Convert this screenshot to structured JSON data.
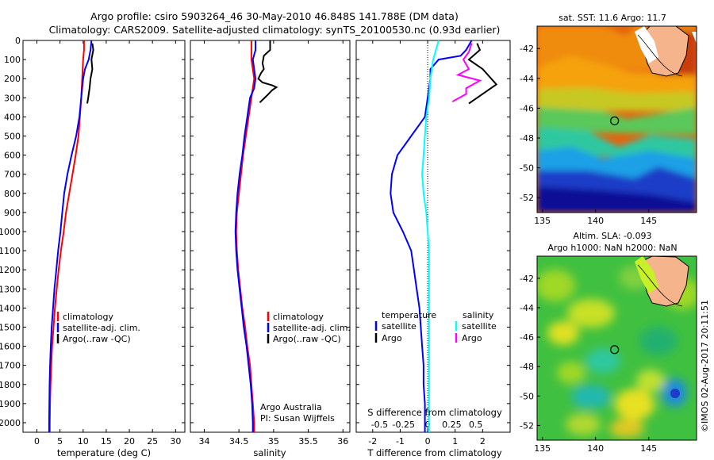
{
  "header": {
    "title_line1": "Argo profile: csiro 5903264_46 30-May-2010 46.848S 141.788E (DM data)",
    "title_line2": "Climatology: CARS2009. Satellite-adjusted climatology: synTS_20100530.nc (0.93d earlier)"
  },
  "colors": {
    "climatology": "#ff0000",
    "satellite": "#0000ff",
    "argo": "#000000",
    "satellite_s": "#00ffff",
    "argo_s": "#ff00ff",
    "zero_line": "#000000"
  },
  "chart_data": [
    {
      "id": "temperature",
      "type": "line",
      "xlabel": "temperature (deg C)",
      "ylabel": "",
      "xlim": [
        -3,
        32
      ],
      "ylim": [
        2050,
        0
      ],
      "xticks": [
        0,
        5,
        10,
        15,
        20,
        25,
        30
      ],
      "yticks": [
        0,
        100,
        200,
        300,
        400,
        500,
        600,
        700,
        800,
        900,
        1000,
        1100,
        1200,
        1300,
        1400,
        1500,
        1600,
        1700,
        1800,
        1900,
        2000
      ],
      "legend": [
        "climatology",
        "satellite-adj. clim.",
        "Argo(..raw -QC)"
      ],
      "series": [
        {
          "name": "climatology",
          "color": "#ff0000",
          "points": [
            [
              10.2,
              0
            ],
            [
              10.2,
              50
            ],
            [
              10.0,
              100
            ],
            [
              9.8,
              200
            ],
            [
              9.6,
              300
            ],
            [
              9.3,
              400
            ],
            [
              9.0,
              500
            ],
            [
              8.4,
              600
            ],
            [
              7.7,
              700
            ],
            [
              7.0,
              800
            ],
            [
              6.3,
              900
            ],
            [
              5.8,
              1000
            ],
            [
              5.2,
              1100
            ],
            [
              4.7,
              1200
            ],
            [
              4.3,
              1300
            ],
            [
              3.9,
              1400
            ],
            [
              3.6,
              1500
            ],
            [
              3.3,
              1600
            ],
            [
              3.1,
              1700
            ],
            [
              2.95,
              1800
            ],
            [
              2.85,
              1900
            ],
            [
              2.8,
              2000
            ],
            [
              2.8,
              2050
            ]
          ]
        },
        {
          "name": "satellite-adj. clim.",
          "color": "#0000ff",
          "points": [
            [
              11.8,
              0
            ],
            [
              11.6,
              50
            ],
            [
              11.2,
              100
            ],
            [
              10.4,
              150
            ],
            [
              10.0,
              200
            ],
            [
              9.6,
              300
            ],
            [
              9.2,
              400
            ],
            [
              8.5,
              500
            ],
            [
              7.5,
              600
            ],
            [
              6.6,
              700
            ],
            [
              5.9,
              800
            ],
            [
              5.5,
              900
            ],
            [
              5.1,
              1000
            ],
            [
              4.6,
              1100
            ],
            [
              4.2,
              1200
            ],
            [
              3.8,
              1300
            ],
            [
              3.5,
              1400
            ],
            [
              3.2,
              1500
            ],
            [
              3.0,
              1600
            ],
            [
              2.85,
              1700
            ],
            [
              2.75,
              1800
            ],
            [
              2.7,
              1900
            ],
            [
              2.65,
              2000
            ],
            [
              2.65,
              2050
            ]
          ]
        },
        {
          "name": "Argo(..raw -QC)",
          "color": "#000000",
          "points": [
            [
              12.0,
              15
            ],
            [
              12.2,
              50
            ],
            [
              11.8,
              100
            ],
            [
              12.0,
              150
            ],
            [
              11.6,
              200
            ],
            [
              11.4,
              250
            ],
            [
              11.1,
              300
            ],
            [
              10.9,
              330
            ]
          ]
        }
      ]
    },
    {
      "id": "salinity",
      "type": "line",
      "xlabel": "salinity",
      "ylabel": "",
      "xlim": [
        33.8,
        36.1
      ],
      "ylim": [
        2050,
        0
      ],
      "xticks": [
        34,
        34.5,
        35,
        35.5,
        36
      ],
      "xtick_labels": [
        "34",
        "34.5",
        "35",
        "35.5",
        "36"
      ],
      "yticks": [
        0,
        100,
        200,
        300,
        400,
        500,
        600,
        700,
        800,
        900,
        1000,
        1100,
        1200,
        1300,
        1400,
        1500,
        1600,
        1700,
        1800,
        1900,
        2000
      ],
      "legend": [
        "climatology",
        "satellite-adj. clim.",
        "Argo(..raw -QC)"
      ],
      "annotation": [
        "Argo Australia",
        "PI: Susan Wijffels"
      ],
      "series": [
        {
          "name": "climatology",
          "color": "#ff0000",
          "points": [
            [
              34.68,
              0
            ],
            [
              34.68,
              50
            ],
            [
              34.68,
              100
            ],
            [
              34.72,
              200
            ],
            [
              34.68,
              300
            ],
            [
              34.64,
              400
            ],
            [
              34.6,
              500
            ],
            [
              34.56,
              600
            ],
            [
              34.53,
              700
            ],
            [
              34.5,
              800
            ],
            [
              34.47,
              900
            ],
            [
              34.46,
              1000
            ],
            [
              34.47,
              1100
            ],
            [
              34.49,
              1200
            ],
            [
              34.52,
              1300
            ],
            [
              34.55,
              1400
            ],
            [
              34.59,
              1500
            ],
            [
              34.62,
              1600
            ],
            [
              34.66,
              1700
            ],
            [
              34.68,
              1800
            ],
            [
              34.7,
              1900
            ],
            [
              34.72,
              2000
            ],
            [
              34.72,
              2050
            ]
          ]
        },
        {
          "name": "satellite-adj. clim.",
          "color": "#0000ff",
          "points": [
            [
              34.74,
              0
            ],
            [
              34.74,
              50
            ],
            [
              34.7,
              100
            ],
            [
              34.74,
              200
            ],
            [
              34.72,
              250
            ],
            [
              34.66,
              300
            ],
            [
              34.62,
              400
            ],
            [
              34.58,
              500
            ],
            [
              34.55,
              600
            ],
            [
              34.51,
              700
            ],
            [
              34.48,
              800
            ],
            [
              34.46,
              900
            ],
            [
              34.45,
              1000
            ],
            [
              34.46,
              1100
            ],
            [
              34.48,
              1200
            ],
            [
              34.51,
              1300
            ],
            [
              34.54,
              1400
            ],
            [
              34.57,
              1500
            ],
            [
              34.61,
              1600
            ],
            [
              34.64,
              1700
            ],
            [
              34.67,
              1800
            ],
            [
              34.69,
              1900
            ],
            [
              34.7,
              2000
            ],
            [
              34.7,
              2050
            ]
          ]
        },
        {
          "name": "Argo(..raw -QC)",
          "color": "#000000",
          "points": [
            [
              34.95,
              0
            ],
            [
              34.95,
              50
            ],
            [
              34.86,
              80
            ],
            [
              34.84,
              120
            ],
            [
              34.86,
              150
            ],
            [
              34.82,
              170
            ],
            [
              34.78,
              200
            ],
            [
              34.84,
              220
            ],
            [
              34.98,
              235
            ],
            [
              35.04,
              245
            ],
            [
              34.98,
              260
            ],
            [
              34.9,
              290
            ],
            [
              34.8,
              325
            ]
          ]
        }
      ]
    },
    {
      "id": "difference",
      "type": "line",
      "xlabel": "T difference from climatology",
      "xlabel_top": "S difference from climatology",
      "ylabel": "",
      "xlim": [
        -2.6,
        3.0
      ],
      "ylim": [
        2050,
        0
      ],
      "xticks": [
        -2,
        -1,
        0,
        1,
        2
      ],
      "xticks_top": [
        -0.5,
        -0.25,
        0,
        0.25,
        0.5
      ],
      "xtick_top_labels": [
        "-0.5",
        "-0.25",
        "0",
        "0.25",
        "0.5"
      ],
      "yticks": [
        0,
        100,
        200,
        300,
        400,
        500,
        600,
        700,
        800,
        900,
        1000,
        1100,
        1200,
        1300,
        1400,
        1500,
        1600,
        1700,
        1800,
        1900,
        2000
      ],
      "legend_temperature": {
        "title": "temperature",
        "items": [
          "satellite",
          "Argo"
        ]
      },
      "legend_salinity": {
        "title": "salinity",
        "items": [
          "satellite",
          "Argo"
        ]
      },
      "series": [
        {
          "name": "temperature satellite",
          "color": "#0000ff",
          "points": [
            [
              1.6,
              0
            ],
            [
              1.4,
              50
            ],
            [
              1.2,
              80
            ],
            [
              0.4,
              100
            ],
            [
              0.1,
              150
            ],
            [
              0.1,
              200
            ],
            [
              0,
              300
            ],
            [
              -0.1,
              400
            ],
            [
              -0.6,
              500
            ],
            [
              -1.1,
              600
            ],
            [
              -1.3,
              700
            ],
            [
              -1.35,
              800
            ],
            [
              -1.25,
              900
            ],
            [
              -0.9,
              1000
            ],
            [
              -0.6,
              1100
            ],
            [
              -0.5,
              1200
            ],
            [
              -0.4,
              1300
            ],
            [
              -0.3,
              1400
            ],
            [
              -0.25,
              1500
            ],
            [
              -0.2,
              1600
            ],
            [
              -0.15,
              1700
            ],
            [
              -0.15,
              1800
            ],
            [
              -0.1,
              1900
            ],
            [
              -0.1,
              2000
            ],
            [
              -0.1,
              2050
            ]
          ]
        },
        {
          "name": "temperature Argo",
          "color": "#000000",
          "points": [
            [
              1.8,
              15
            ],
            [
              1.9,
              50
            ],
            [
              1.5,
              100
            ],
            [
              2.0,
              150
            ],
            [
              2.5,
              230
            ],
            [
              1.8,
              300
            ],
            [
              1.5,
              330
            ]
          ]
        },
        {
          "name": "salinity satellite",
          "color": "#00ffff",
          "points": [
            [
              0.4,
              0
            ],
            [
              0.3,
              50
            ],
            [
              0.2,
              100
            ],
            [
              0.1,
              200
            ],
            [
              0.05,
              300
            ],
            [
              -0.05,
              400
            ],
            [
              -0.1,
              500
            ],
            [
              -0.15,
              600
            ],
            [
              -0.2,
              700
            ],
            [
              -0.15,
              800
            ],
            [
              -0.05,
              900
            ],
            [
              0,
              1000
            ],
            [
              0.05,
              1100
            ],
            [
              0.05,
              1200
            ],
            [
              0.05,
              1300
            ],
            [
              0.05,
              1400
            ],
            [
              0.05,
              1500
            ],
            [
              0.05,
              1600
            ],
            [
              0.05,
              1700
            ],
            [
              0.05,
              1800
            ],
            [
              0.05,
              1900
            ],
            [
              0.05,
              2000
            ],
            [
              0.05,
              2050
            ]
          ]
        },
        {
          "name": "salinity Argo",
          "color": "#ff00ff",
          "points": [
            [
              1.6,
              15
            ],
            [
              1.5,
              60
            ],
            [
              1.3,
              100
            ],
            [
              1.5,
              150
            ],
            [
              1.1,
              180
            ],
            [
              1.9,
              210
            ],
            [
              1.4,
              250
            ],
            [
              1.4,
              280
            ],
            [
              0.9,
              320
            ]
          ]
        }
      ]
    },
    {
      "id": "sst-map",
      "type": "heatmap",
      "title": "sat. SST: 11.6 Argo: 11.7",
      "xlim": [
        134.5,
        149.5
      ],
      "ylim": [
        -53,
        -40.5
      ],
      "xticks": [
        135,
        140,
        145
      ],
      "yticks": [
        -42,
        -44,
        -46,
        -48,
        -50,
        -52
      ],
      "marker": [
        141.788,
        -46.848
      ]
    },
    {
      "id": "sla-map",
      "type": "heatmap",
      "title_line1": "Altim. SLA: -0.093",
      "title_line2": "Argo h1000: NaN h2000: NaN",
      "xlim": [
        134.5,
        149.5
      ],
      "ylim": [
        -53,
        -40.5
      ],
      "xticks": [
        135,
        140,
        145
      ],
      "yticks": [
        -42,
        -44,
        -46,
        -48,
        -50,
        -52
      ],
      "marker": [
        141.788,
        -46.848
      ]
    }
  ],
  "stamp": "©IMOS 02-Aug-2017 20:11:51"
}
